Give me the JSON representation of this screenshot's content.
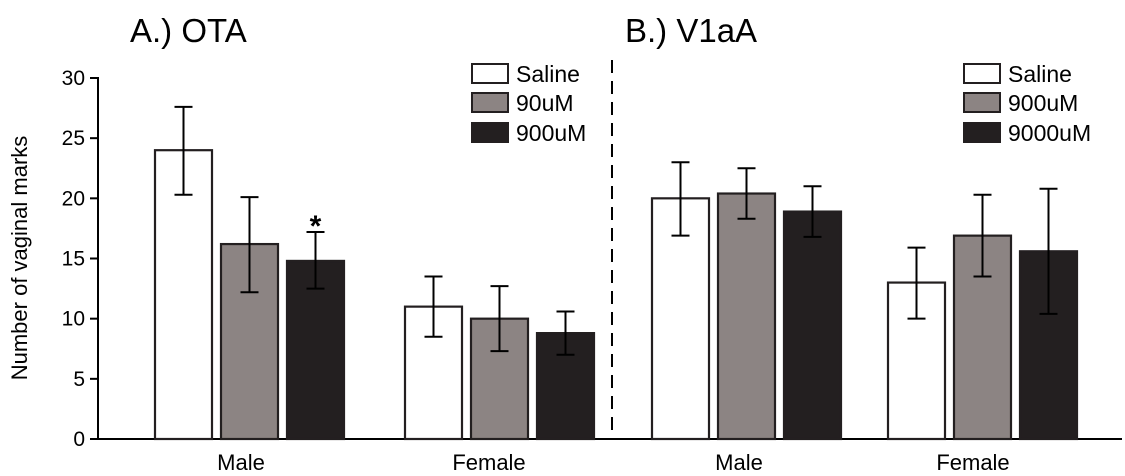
{
  "chart_data": {
    "type": "bar",
    "ylabel": "Number of vaginal marks",
    "ylim": [
      0,
      30
    ],
    "yticks": [
      0,
      5,
      10,
      15,
      20,
      25,
      30
    ],
    "error_bars": "whiskers (mean ± error)",
    "panels": [
      {
        "title": "A.) OTA",
        "categories": [
          "Male",
          "Female"
        ],
        "series": [
          {
            "name": "Saline",
            "color": "#ffffff",
            "values": [
              24.0,
              11.0
            ],
            "err_low": [
              20.3,
              8.5
            ],
            "err_high": [
              27.6,
              13.5
            ]
          },
          {
            "name": "90uM",
            "color": "#8c8483",
            "values": [
              16.2,
              10.0
            ],
            "err_low": [
              12.2,
              7.3
            ],
            "err_high": [
              20.1,
              12.7
            ]
          },
          {
            "name": "900uM",
            "color": "#231f20",
            "values": [
              14.8,
              8.8
            ],
            "err_low": [
              12.5,
              7.0
            ],
            "err_high": [
              17.2,
              10.6
            ]
          }
        ],
        "annotations": [
          {
            "text": "*",
            "category": "Male",
            "series": "900uM"
          }
        ]
      },
      {
        "title": "B.) V1aA",
        "categories": [
          "Male",
          "Female"
        ],
        "series": [
          {
            "name": "Saline",
            "color": "#ffffff",
            "values": [
              20.0,
              13.0
            ],
            "err_low": [
              16.9,
              10.0
            ],
            "err_high": [
              23.0,
              15.9
            ]
          },
          {
            "name": "900uM",
            "color": "#8c8483",
            "values": [
              20.4,
              16.9
            ],
            "err_low": [
              18.3,
              13.5
            ],
            "err_high": [
              22.5,
              20.3
            ]
          },
          {
            "name": "9000uM",
            "color": "#231f20",
            "values": [
              18.9,
              15.6
            ],
            "err_low": [
              16.8,
              10.4
            ],
            "err_high": [
              21.0,
              20.8
            ]
          }
        ],
        "annotations": []
      }
    ]
  }
}
